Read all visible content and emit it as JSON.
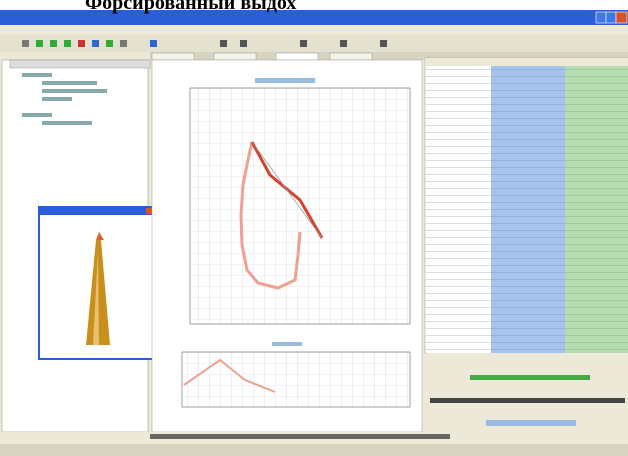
{
  "caption": "Форсированный выдох"
}
